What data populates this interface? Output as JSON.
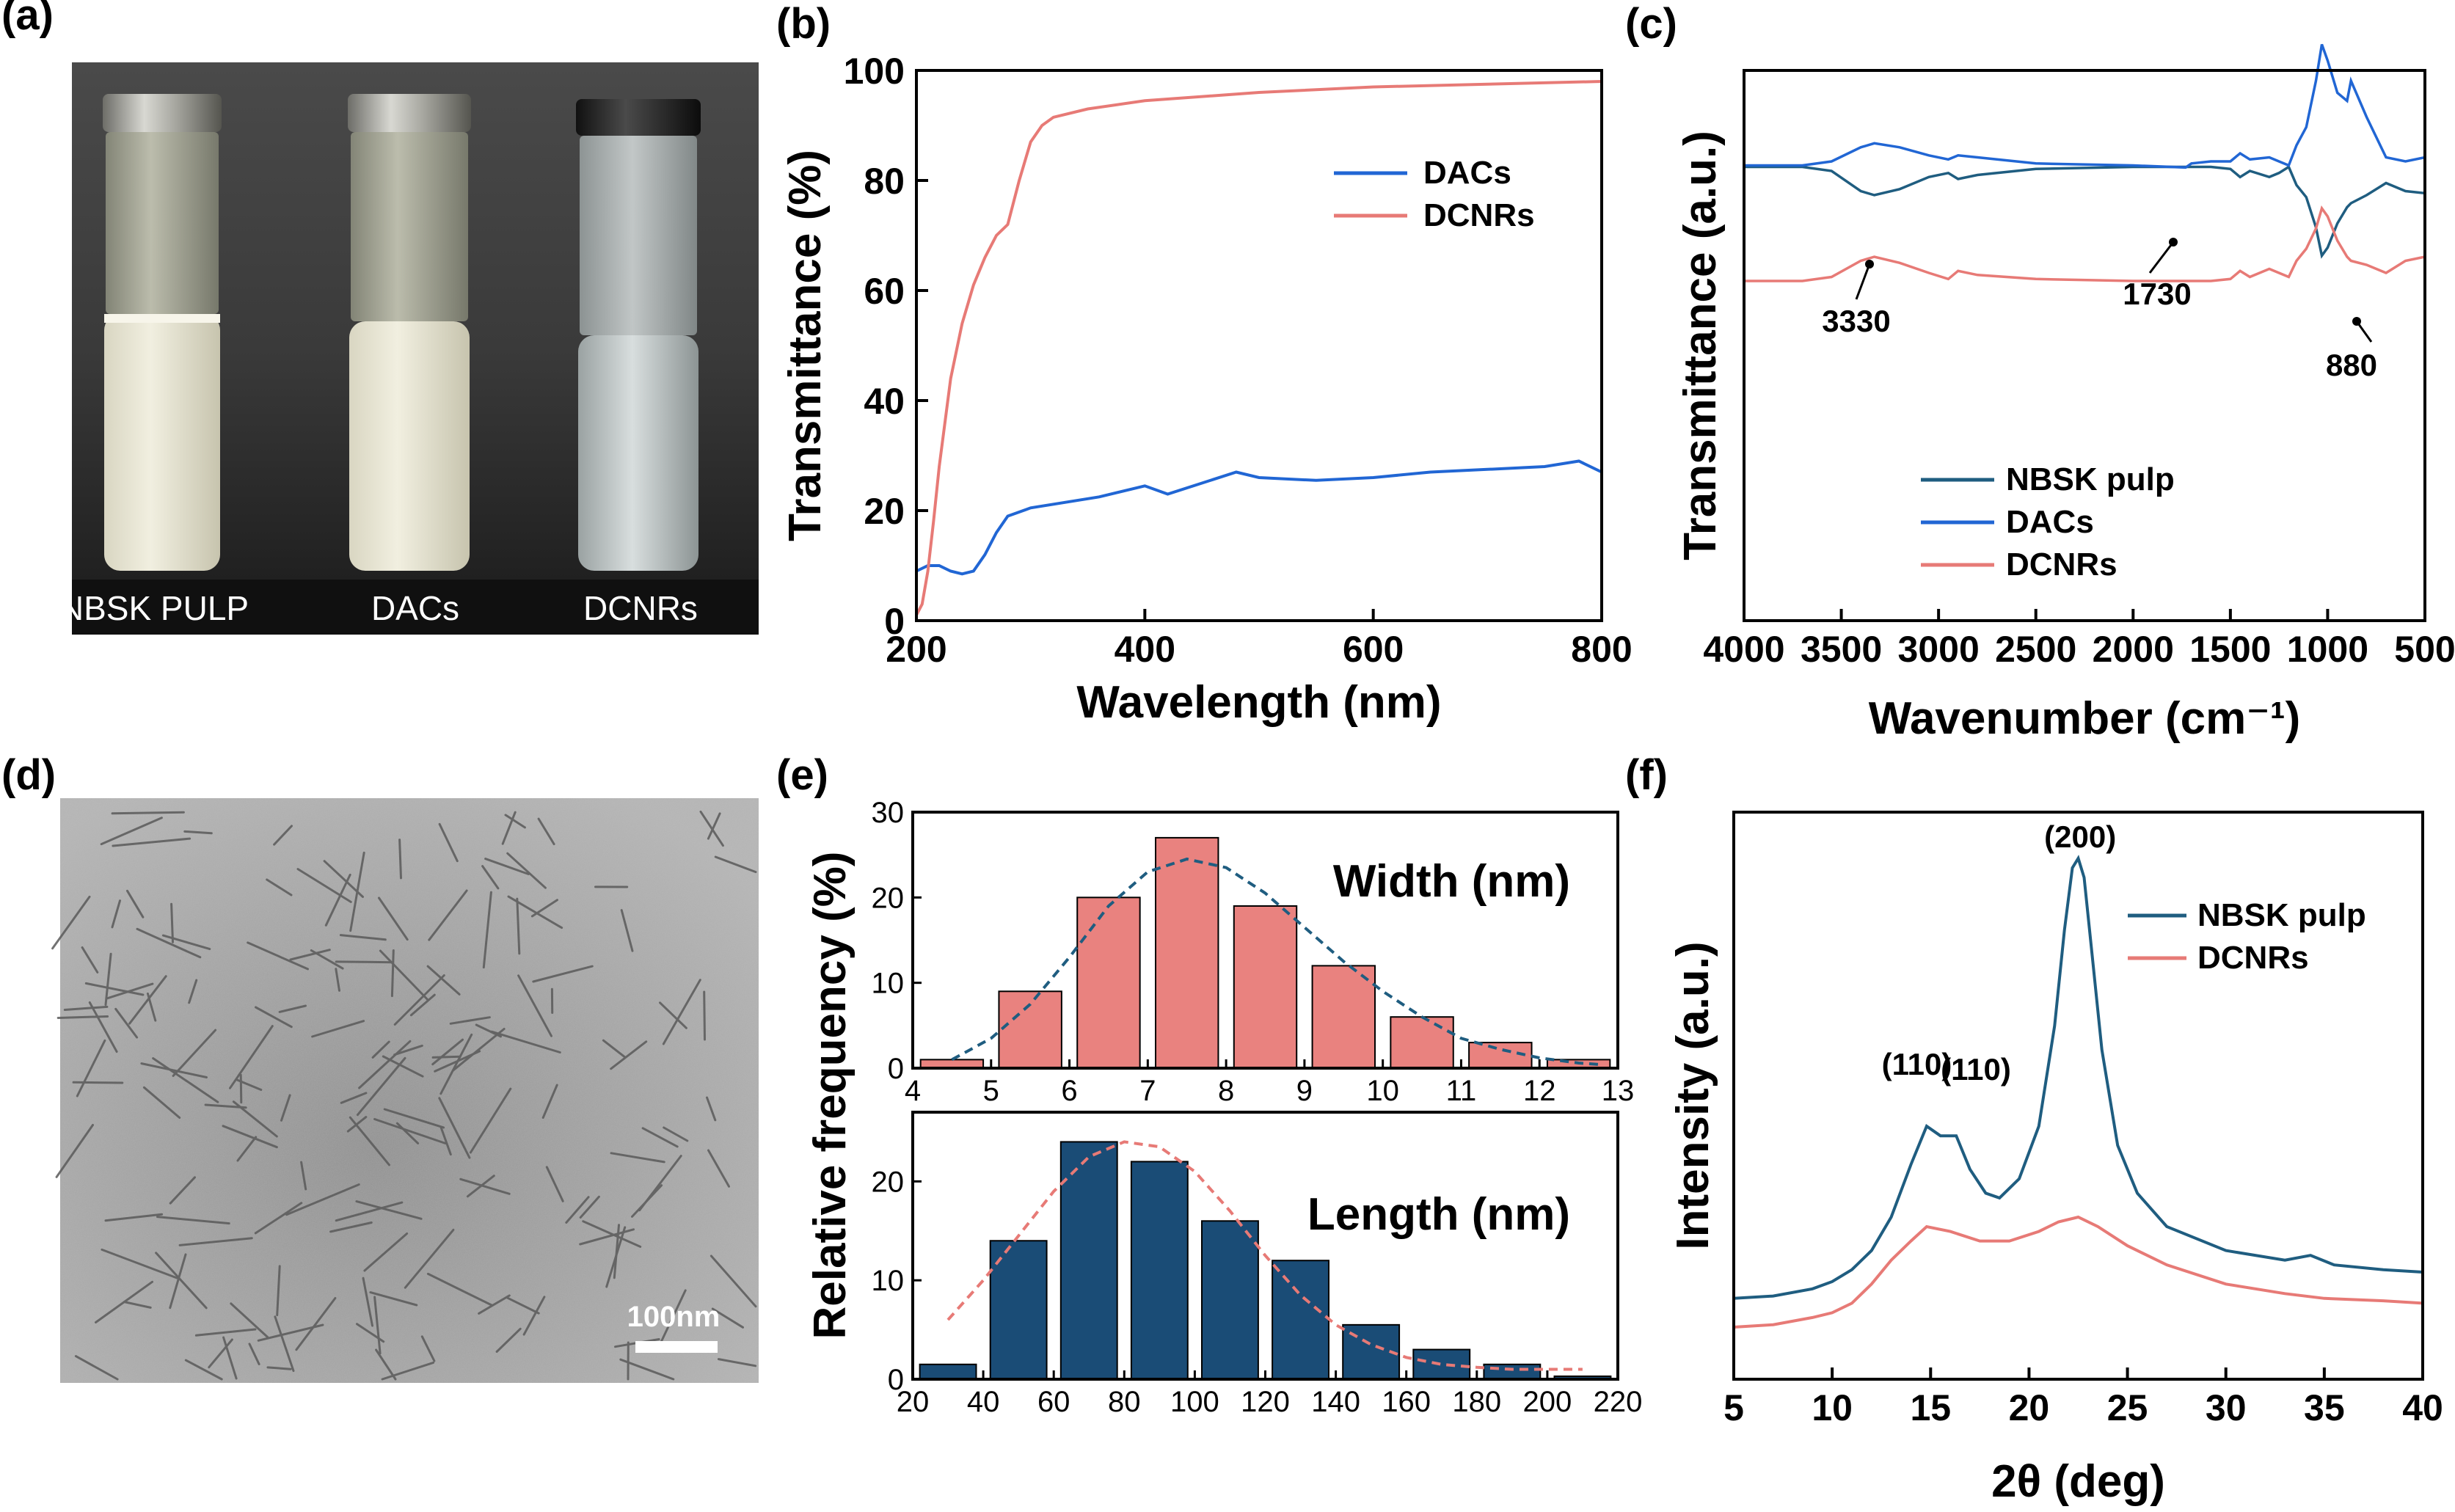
{
  "panels": {
    "a": {
      "label": "(a)",
      "vial_labels": [
        "NBSK PULP",
        "DACs",
        "DCNRs"
      ]
    },
    "b": {
      "label": "(b)"
    },
    "c": {
      "label": "(c)"
    },
    "d": {
      "label": "(d)",
      "scale_bar": "100nm"
    },
    "e": {
      "label": "(e)"
    },
    "f": {
      "label": "(f)"
    }
  },
  "colors": {
    "dacs_blue": "#2166d4",
    "dcnrs_red": "#e77a76",
    "nbsk_teal": "#1f5d80",
    "bar_red": "#e9827f",
    "bar_navy": "#1a4c76"
  },
  "chart_data": [
    {
      "id": "b",
      "type": "line",
      "xlabel": "Wavelength (nm)",
      "ylabel": "Transmittance (%)",
      "xlim": [
        200,
        800
      ],
      "ylim": [
        0,
        100
      ],
      "xticks": [
        200,
        400,
        600,
        800
      ],
      "yticks": [
        0,
        20,
        40,
        60,
        80,
        100
      ],
      "legend_position": "top-right",
      "series": [
        {
          "name": "DACs",
          "color": "#2166d4",
          "x": [
            200,
            210,
            220,
            230,
            240,
            250,
            260,
            270,
            280,
            300,
            330,
            360,
            400,
            420,
            450,
            480,
            500,
            550,
            600,
            650,
            700,
            750,
            780,
            800
          ],
          "y": [
            9,
            10,
            10,
            9,
            8.5,
            9,
            12,
            16,
            19,
            20.5,
            21.5,
            22.5,
            24.5,
            23,
            25,
            27,
            26,
            25.5,
            26,
            27,
            27.5,
            28,
            29,
            27
          ]
        },
        {
          "name": "DCNRs",
          "color": "#e77a76",
          "x": [
            200,
            205,
            210,
            215,
            220,
            230,
            240,
            250,
            260,
            270,
            280,
            290,
            300,
            310,
            320,
            350,
            400,
            500,
            600,
            700,
            800
          ],
          "y": [
            1,
            3,
            9,
            18,
            28,
            44,
            54,
            61,
            66,
            70,
            72,
            80,
            87,
            90,
            91.5,
            93,
            94.5,
            96,
            97,
            97.5,
            98
          ]
        }
      ]
    },
    {
      "id": "c",
      "type": "line",
      "xlabel": "Wavenumber (cm⁻¹)",
      "ylabel": "Transmittance (a.u.)",
      "xlim": [
        4000,
        500
      ],
      "xticks": [
        4000,
        3500,
        3000,
        2500,
        2000,
        1500,
        1000,
        500
      ],
      "legend_position": "bottom-left",
      "annotations": [
        "3330",
        "1730",
        "880"
      ],
      "series": [
        {
          "name": "NBSK pulp",
          "color": "#1f5d80",
          "x": [
            4000,
            3700,
            3550,
            3400,
            3330,
            3200,
            3050,
            2950,
            2900,
            2800,
            2500,
            2000,
            1700,
            1600,
            1500,
            1450,
            1400,
            1300,
            1250,
            1200,
            1160,
            1110,
            1060,
            1030,
            1000,
            950,
            900,
            880,
            800,
            700,
            600,
            500
          ],
          "y": [
            10,
            10,
            12,
            22,
            24,
            21,
            15,
            13,
            16,
            14,
            11,
            10,
            10,
            10,
            11,
            15,
            12,
            15,
            13,
            10,
            19,
            25,
            40,
            54,
            50,
            38,
            30,
            28,
            24,
            18,
            22,
            23
          ]
        },
        {
          "name": "DACs",
          "color": "#2166d4",
          "x": [
            4000,
            3700,
            3550,
            3400,
            3330,
            3200,
            3050,
            2950,
            2900,
            2800,
            2500,
            2000,
            1730,
            1700,
            1600,
            1500,
            1450,
            1400,
            1300,
            1250,
            1200,
            1160,
            1110,
            1060,
            1030,
            1000,
            950,
            900,
            880,
            800,
            700,
            600,
            500
          ],
          "y": [
            -26,
            -26,
            -28,
            -35,
            -37,
            -35,
            -31,
            -29,
            -31,
            -30,
            -27,
            -26,
            -25,
            -27,
            -28,
            -28,
            -32,
            -29,
            -30,
            -28,
            -26,
            -36,
            -45,
            -68,
            -86,
            -78,
            -62,
            -58,
            -68,
            -50,
            -30,
            -28,
            -30
          ]
        },
        {
          "name": "DCNRs",
          "color": "#e77a76",
          "x": [
            4000,
            3700,
            3550,
            3400,
            3330,
            3200,
            3050,
            2950,
            2900,
            2800,
            2500,
            2000,
            1700,
            1600,
            1500,
            1450,
            1400,
            1300,
            1250,
            1200,
            1160,
            1110,
            1060,
            1030,
            1000,
            950,
            900,
            880,
            800,
            700,
            600,
            500
          ],
          "y": [
            -60,
            -60,
            -62,
            -70,
            -72,
            -69,
            -64,
            -61,
            -65,
            -63,
            -61,
            -60,
            -60,
            -60,
            -61,
            -65,
            -62,
            -66,
            -64,
            -62,
            -70,
            -76,
            -86,
            -96,
            -92,
            -80,
            -72,
            -70,
            -68,
            -64,
            -70,
            -72
          ]
        }
      ]
    },
    {
      "id": "e",
      "type": "bar",
      "ylabel": "Relative frequency (%)",
      "subplots": [
        {
          "label": "Width (nm)",
          "xlim": [
            4,
            13
          ],
          "ylim": [
            0,
            30
          ],
          "xticks": [
            4,
            5,
            6,
            7,
            8,
            9,
            10,
            11,
            12,
            13
          ],
          "yticks": [
            0,
            10,
            20,
            30
          ],
          "bar_color": "#e9827f",
          "bin_width": 1,
          "x": [
            4.5,
            5.5,
            6.5,
            7.5,
            8.5,
            9.5,
            10.5,
            11.5,
            12.5
          ],
          "values": [
            1,
            9,
            20,
            27,
            19,
            12,
            6,
            3,
            1
          ],
          "fit": {
            "color": "#1f5d80",
            "x": [
              4.5,
              5,
              5.5,
              6,
              6.5,
              7,
              7.5,
              8,
              8.5,
              9,
              9.5,
              10,
              10.5,
              11,
              11.5,
              12,
              12.5,
              12.8
            ],
            "y": [
              1,
              3.5,
              7.5,
              13,
              19,
              23,
              24.5,
              23.5,
              20.5,
              16.5,
              12.5,
              9,
              6,
              3.5,
              2.2,
              1.2,
              0.6,
              0.4
            ]
          }
        },
        {
          "label": "Length (nm)",
          "xlim": [
            20,
            220
          ],
          "ylim": [
            0,
            27
          ],
          "xticks": [
            20,
            40,
            60,
            80,
            100,
            120,
            140,
            160,
            180,
            200,
            220
          ],
          "yticks": [
            0,
            10,
            20
          ],
          "bar_color": "#1a4c76",
          "bin_width": 20,
          "x": [
            30,
            50,
            70,
            90,
            110,
            130,
            150,
            170,
            190,
            210
          ],
          "values": [
            1.5,
            14,
            24,
            22,
            16,
            12,
            5.5,
            3,
            1.5,
            0.3
          ],
          "fit": {
            "color": "#e77a76",
            "x": [
              30,
              40,
              50,
              60,
              70,
              80,
              90,
              100,
              110,
              120,
              130,
              140,
              150,
              160,
              170,
              180,
              190,
              200,
              210
            ],
            "y": [
              6,
              10,
              14.5,
              19,
              22.5,
              24,
              23.5,
              21,
              17,
              12.5,
              8.5,
              5.5,
              3.5,
              2.2,
              1.5,
              1.2,
              1,
              1,
              1
            ]
          }
        }
      ]
    },
    {
      "id": "f",
      "type": "line",
      "xlabel": "2θ (deg)",
      "ylabel": "Intensity (a.u.)",
      "xlim": [
        5,
        40
      ],
      "xticks": [
        5,
        10,
        15,
        20,
        25,
        30,
        35,
        40
      ],
      "legend_position": "top-right",
      "annotations": [
        "(200)",
        "(110)",
        "(110)"
      ],
      "series": [
        {
          "name": "NBSK pulp",
          "color": "#1f5d80",
          "x": [
            5,
            7,
            9,
            10,
            11,
            12,
            13,
            14,
            14.8,
            15.5,
            16.3,
            17,
            17.8,
            18.5,
            19.5,
            20.5,
            21.3,
            21.8,
            22.2,
            22.5,
            22.8,
            23.2,
            23.7,
            24.5,
            25.5,
            27,
            30,
            33,
            34.3,
            35.5,
            38,
            40
          ],
          "y": [
            8,
            8.5,
            10,
            11.5,
            14,
            18,
            25,
            36,
            44,
            42,
            42,
            35,
            30,
            29,
            33,
            44,
            65,
            85,
            98,
            100,
            96,
            80,
            60,
            40,
            30,
            23,
            18,
            16,
            17,
            15,
            14,
            13.5
          ]
        },
        {
          "name": "DCNRs",
          "color": "#e77a76",
          "x": [
            5,
            7,
            9,
            10,
            11,
            12,
            13,
            14,
            14.8,
            16,
            17.5,
            19,
            20.5,
            21.5,
            22.5,
            23.5,
            25,
            27,
            30,
            33,
            35,
            38,
            40
          ],
          "y": [
            2,
            2.5,
            4,
            5,
            7,
            11,
            16,
            20,
            23,
            22,
            20,
            20,
            22,
            24,
            25,
            23,
            19,
            15,
            11,
            9,
            8,
            7.5,
            7
          ]
        }
      ]
    }
  ]
}
